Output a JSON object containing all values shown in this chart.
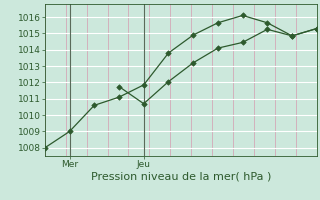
{
  "xlabel": "Pression niveau de la mer( hPa )",
  "background_color": "#cce8dc",
  "plot_bg_color": "#cce8dc",
  "line_color": "#2d5a2d",
  "marker_color": "#2d5a2d",
  "grid_color_v": "#d4a8b8",
  "grid_color_h": "#ffffff",
  "ylim": [
    1007.5,
    1016.8
  ],
  "yticks": [
    1008,
    1009,
    1010,
    1011,
    1012,
    1013,
    1014,
    1015,
    1016
  ],
  "xtick_labels": [
    "Mer",
    "Jeu"
  ],
  "day_line_color": "#5a6a5a",
  "font_color": "#2d5a2d",
  "tick_fontsize": 6.5,
  "xlabel_fontsize": 8,
  "num_vgrid": 13,
  "num_hgrid": 9,
  "line1_x": [
    0,
    1,
    2,
    3,
    4,
    5,
    6,
    7,
    8,
    9,
    10,
    11
  ],
  "line1_y": [
    1008.0,
    1009.0,
    1010.6,
    1011.1,
    1011.85,
    1013.8,
    1014.9,
    1015.65,
    1016.1,
    1015.65,
    1014.85,
    1015.3
  ],
  "line2_x": [
    3,
    4,
    5,
    6,
    7,
    8,
    9,
    10,
    11
  ],
  "line2_y": [
    1011.75,
    1010.7,
    1012.05,
    1013.2,
    1014.1,
    1014.45,
    1015.25,
    1014.85,
    1015.3
  ],
  "xlim": [
    0,
    11
  ],
  "mer_x": 1,
  "jeu_x": 4
}
